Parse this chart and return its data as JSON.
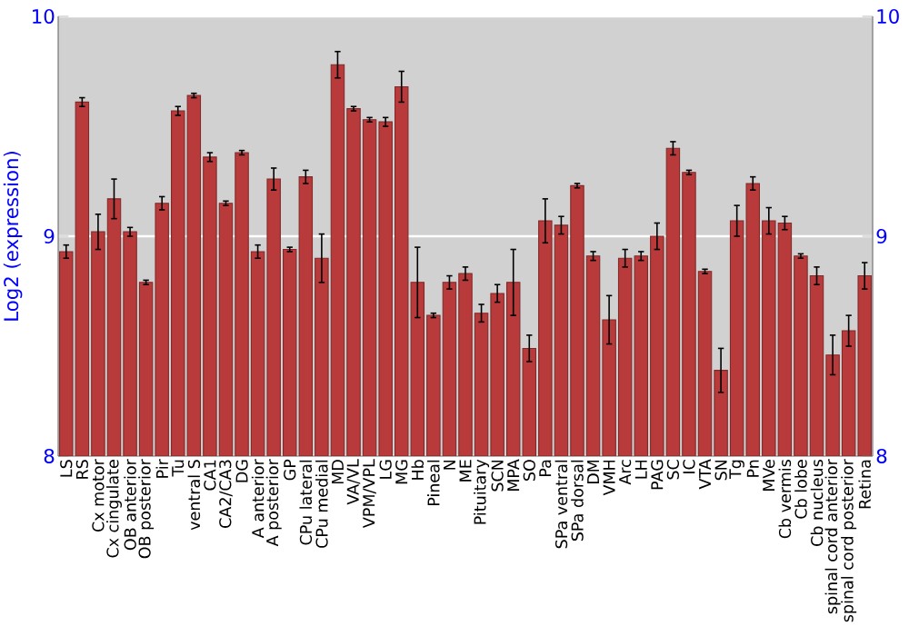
{
  "chart_data": {
    "type": "bar",
    "ylabel": "Log2 (expression)",
    "categories": [
      "LS",
      "RS",
      "Cx motor",
      "Cx cingulate",
      "OB anterior",
      "OB posterior",
      "Pir",
      "Tu",
      "ventral S",
      "CA1",
      "CA2/CA3",
      "DG",
      "A anterior",
      "A posterior",
      "GP",
      "CPu lateral",
      "CPu medial",
      "MD",
      "VA/VL",
      "VPM/VPL",
      "LG",
      "MG",
      "Hb",
      "Pineal",
      "N",
      "ME",
      "Pituitary",
      "SCN",
      "MPA",
      "SO",
      "Pa",
      "SPa ventral",
      "SPa dorsal",
      "DM",
      "VMH",
      "Arc",
      "LH",
      "PAG",
      "SC",
      "IC",
      "VTA",
      "SN",
      "Tg",
      "Pn",
      "MVe",
      "Cb vermis",
      "Cb lobe",
      "Cb nucleus",
      "spinal cord anterior",
      "spinal cord posterior",
      "Retina"
    ],
    "values": [
      8.93,
      9.61,
      9.02,
      9.17,
      9.02,
      8.79,
      9.15,
      9.57,
      9.64,
      9.36,
      9.15,
      9.38,
      8.93,
      9.26,
      8.94,
      9.27,
      8.9,
      9.78,
      9.58,
      9.53,
      9.52,
      9.68,
      8.79,
      8.64,
      8.79,
      8.83,
      8.65,
      8.74,
      8.79,
      8.49,
      9.07,
      9.05,
      9.23,
      8.91,
      8.62,
      8.9,
      8.91,
      9.0,
      9.4,
      9.29,
      8.84,
      8.39,
      9.07,
      9.24,
      9.07,
      9.06,
      8.91,
      8.82,
      8.46,
      8.57,
      8.82
    ],
    "errors": [
      0.03,
      0.02,
      0.08,
      0.09,
      0.02,
      0.01,
      0.03,
      0.02,
      0.01,
      0.02,
      0.01,
      0.01,
      0.03,
      0.05,
      0.01,
      0.03,
      0.11,
      0.06,
      0.01,
      0.01,
      0.02,
      0.07,
      0.16,
      0.01,
      0.03,
      0.03,
      0.04,
      0.04,
      0.15,
      0.06,
      0.1,
      0.04,
      0.01,
      0.02,
      0.11,
      0.04,
      0.02,
      0.06,
      0.03,
      0.01,
      0.01,
      0.1,
      0.07,
      0.03,
      0.06,
      0.03,
      0.01,
      0.04,
      0.09,
      0.07,
      0.06
    ],
    "color": "#b83a3a",
    "ylim": [
      8,
      10
    ],
    "yticks": [
      8,
      9,
      10
    ],
    "y2lim": [
      8,
      10
    ],
    "y2ticks": [
      8,
      9,
      10
    ],
    "grid": "y"
  }
}
